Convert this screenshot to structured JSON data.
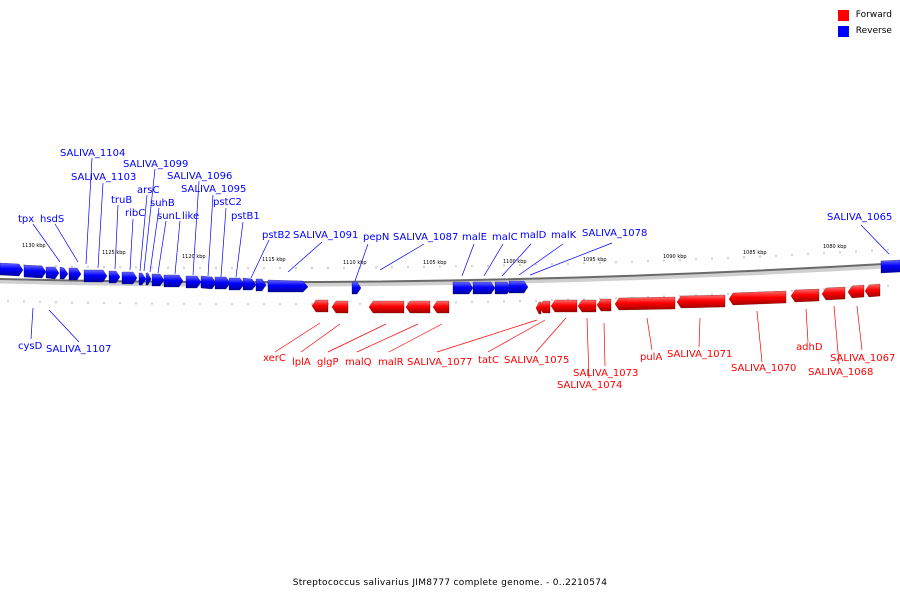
{
  "legend": {
    "forward_label": "Forward",
    "reverse_label": "Reverse",
    "forward_color": "#ff0000",
    "reverse_color": "#0000ff"
  },
  "caption": "Streptococcus salivarius JIM8777 complete genome. - 0..2210574",
  "scale_labels": [
    "1130 kbp",
    "1125 kbp",
    "1120 kbp",
    "1115 kbp",
    "1110 kbp",
    "1105 kbp",
    "1100 kbp",
    "1095 kbp",
    "1090 kbp",
    "1085 kbp",
    "1080 kbp"
  ],
  "reverse_genes": [
    "tpx",
    "hsdS",
    "SALIVA_1104",
    "SALIVA_1103",
    "truB",
    "ribC",
    "SALIVA_1099",
    "arsC",
    "suhB",
    "sunL",
    "like",
    "SALIVA_1096",
    "SALIVA_1095",
    "pstC2",
    "pstB1",
    "pstB2",
    "SALIVA_1091",
    "pepN",
    "SALIVA_1087",
    "malE",
    "malC",
    "malD",
    "malK",
    "SALIVA_1078",
    "SALIVA_1065",
    "cysD",
    "SALIVA_1107"
  ],
  "forward_genes": [
    "xerC",
    "lplA",
    "glgP",
    "malQ",
    "malR",
    "SALIVA_1077",
    "tatC",
    "SALIVA_1075",
    "SALIVA_1073",
    "SALIVA_1074",
    "pulA",
    "SALIVA_1071",
    "SALIVA_1070",
    "adhD",
    "SALIVA_1067",
    "SALIVA_1068"
  ]
}
